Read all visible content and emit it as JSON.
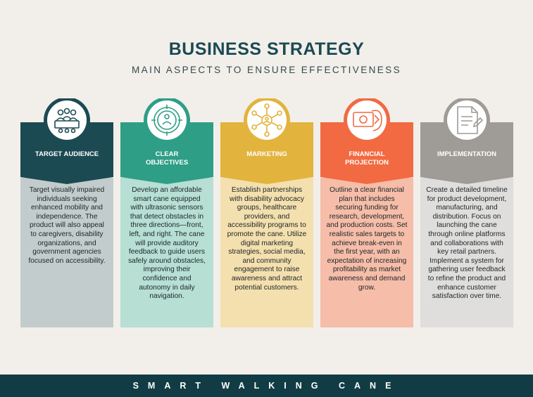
{
  "header": {
    "title": "BUSINESS STRATEGY",
    "subtitle": "MAIN ASPECTS TO ENSURE EFFECTIVENESS"
  },
  "columns": [
    {
      "label": "TARGET AUDIENCE",
      "icon": "audience-icon",
      "head_color": "#1c4a53",
      "body_color": "#c3cccc",
      "text": "Target visually impaired individuals seeking enhanced mobility and independence. The product will also appeal to caregivers, disability organizations, and government agencies focused on accessibility."
    },
    {
      "label": "CLEAR OBJECTIVES",
      "icon": "target-icon",
      "head_color": "#2f9e86",
      "body_color": "#b7dfd4",
      "text": "Develop an affordable smart cane equipped with ultrasonic sensors that detect obstacles in three directions—front, left, and right. The cane will provide auditory feedback to guide users safely around obstacles, improving their confidence and autonomy in daily navigation."
    },
    {
      "label": "MARKETING",
      "icon": "network-icon",
      "head_color": "#e2b43e",
      "body_color": "#f4dfae",
      "text": "Establish partnerships with disability advocacy groups, healthcare providers, and accessibility programs to promote the cane. Utilize digital marketing strategies, social media, and community engagement to raise awareness and attract potential customers."
    },
    {
      "label": "FINANCIAL PROJECTION",
      "icon": "money-icon",
      "head_color": "#f26a42",
      "body_color": "#f6bda9",
      "text": "Outline a clear financial plan that includes securing funding for research, development, and production costs. Set realistic sales targets to achieve break-even in the first year, with an expectation of increasing profitability as market awareness and demand grow."
    },
    {
      "label": "IMPLEMENTATION",
      "icon": "document-icon",
      "head_color": "#9f9b97",
      "body_color": "#e0dedc",
      "text": "Create a detailed timeline for product development, manufacturing, and distribution. Focus on launching the cane through online platforms and collaborations with key retail partners. Implement a system for gathering user feedback to refine the product and enhance customer satisfaction over time."
    }
  ],
  "footer": {
    "text": "SMART WALKING CANE"
  }
}
